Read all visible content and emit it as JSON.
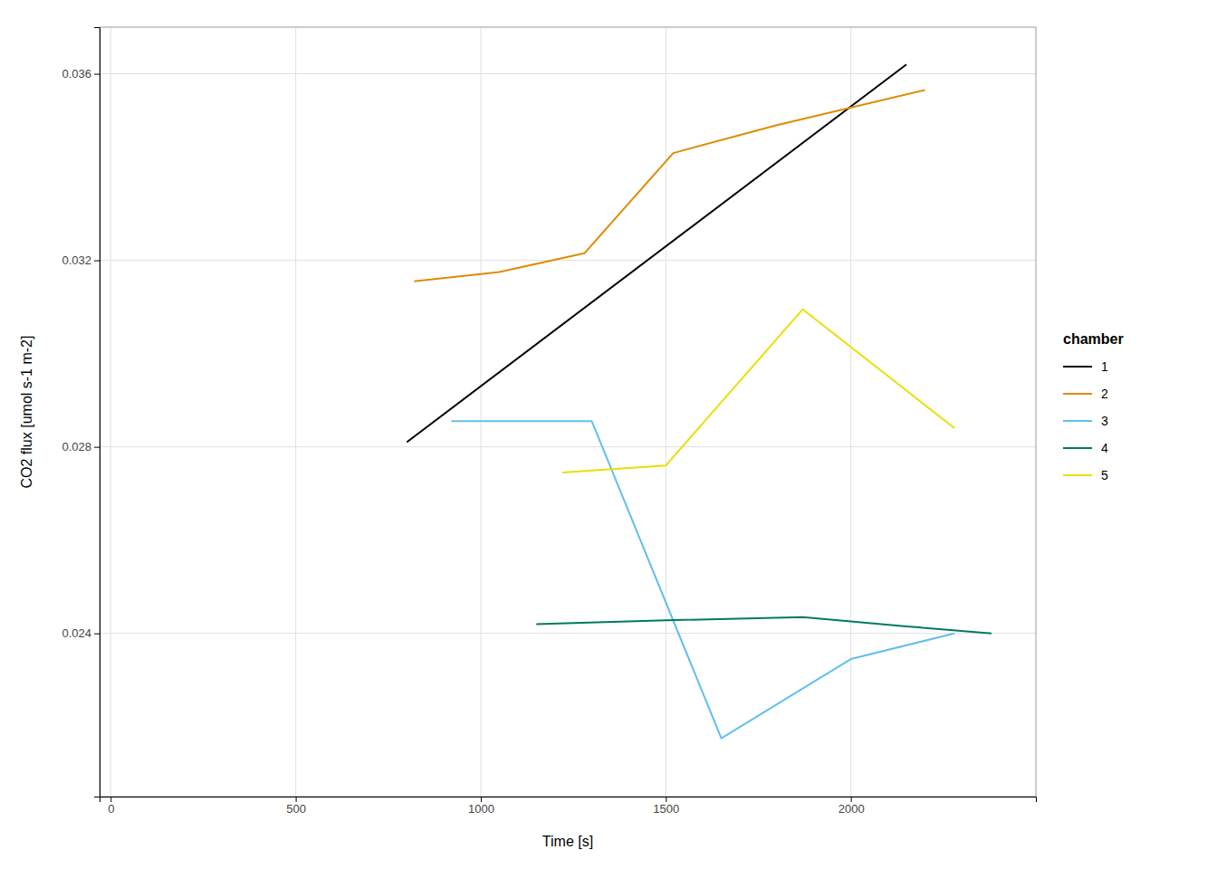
{
  "chart_data": {
    "type": "line",
    "xlabel": "Time [s]",
    "ylabel": "CO2 flux [umol s-1 m-2]",
    "legend_title": "chamber",
    "legend": "right",
    "grid": true,
    "xlim": [
      -30,
      2500
    ],
    "ylim": [
      0.0205,
      0.037
    ],
    "xticks": [
      0,
      500,
      1000,
      1500,
      2000
    ],
    "yticks": [
      0.024,
      0.028,
      0.032,
      0.036
    ],
    "series": [
      {
        "name": "1",
        "color": "#000000",
        "x": [
          800,
          2150
        ],
        "values": [
          0.0281,
          0.0362
        ]
      },
      {
        "name": "2",
        "color": "#E08B00",
        "x": [
          820,
          1050,
          1280,
          1520,
          1800,
          2200
        ],
        "values": [
          0.03155,
          0.03175,
          0.03215,
          0.0343,
          0.0349,
          0.03565
        ]
      },
      {
        "name": "3",
        "color": "#61BFEF",
        "x": [
          920,
          1300,
          1650,
          2000,
          2280
        ],
        "values": [
          0.02855,
          0.02855,
          0.02175,
          0.02345,
          0.024
        ]
      },
      {
        "name": "4",
        "color": "#007A60",
        "x": [
          1150,
          1500,
          1870,
          2150,
          2380
        ],
        "values": [
          0.0242,
          0.02428,
          0.02435,
          0.02415,
          0.024
        ]
      },
      {
        "name": "5",
        "color": "#E8E000",
        "x": [
          1220,
          1500,
          1870,
          2280
        ],
        "values": [
          0.02745,
          0.0276,
          0.03095,
          0.0284
        ]
      }
    ]
  }
}
